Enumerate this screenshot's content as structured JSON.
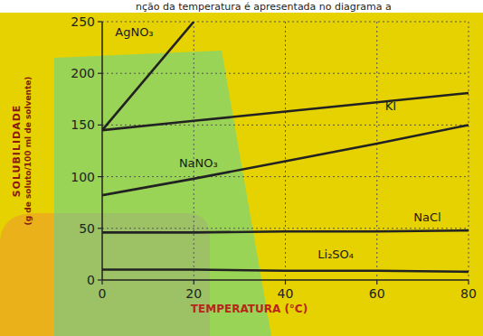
{
  "chart_data": {
    "type": "line",
    "title": "nção da temperatura é apresentada no diagrama a",
    "x_label": "TEMPERATURA (°C)",
    "y_label": "SOLUBILIDADE",
    "annotations": [
      "(g de soluto/100 ml de solvente)"
    ],
    "x": [
      0,
      20,
      40,
      60,
      80
    ],
    "series": [
      {
        "name": "AgNO₃",
        "color": "#222222",
        "values": [
          145,
          250,
          null,
          null,
          null
        ]
      },
      {
        "name": "KI",
        "color": "#222222",
        "values": [
          145,
          154,
          163,
          172,
          181
        ]
      },
      {
        "name": "NaNO₃",
        "color": "#222222",
        "values": [
          82,
          98,
          115,
          132,
          150
        ]
      },
      {
        "name": "NaCl",
        "color": "#222222",
        "values": [
          46,
          46,
          47,
          47,
          48
        ]
      },
      {
        "name": "Li₂SO₄",
        "color": "#222222",
        "values": [
          10,
          10,
          9,
          9,
          8
        ]
      }
    ],
    "xlim": [
      0,
      80
    ],
    "xticks": [
      0,
      20,
      40,
      60,
      80
    ],
    "ylim": [
      0,
      250
    ],
    "yticks": [
      0,
      50,
      100,
      150,
      200,
      250
    ],
    "grid": true
  }
}
